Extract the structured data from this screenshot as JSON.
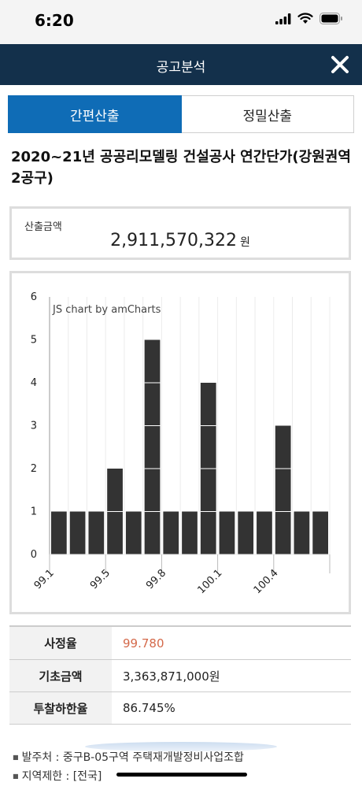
{
  "status_bar": {
    "time": "6:20"
  },
  "header": {
    "title": "공고분석"
  },
  "tabs": [
    {
      "label": "간편산출",
      "active": true
    },
    {
      "label": "정밀산출",
      "active": false
    }
  ],
  "heading": "2020~21년 공공리모델링 건설공사 연간단가(강원권역 2공구)",
  "calculated": {
    "label": "산출금액",
    "value": "2,911,570,322",
    "unit": "원"
  },
  "chart_data": {
    "type": "bar",
    "watermark": "JS chart by amCharts",
    "ylim": [
      0,
      6
    ],
    "y_ticks": [
      "0",
      "1",
      "2",
      "3",
      "4",
      "5",
      "6"
    ],
    "x_tick_labels": [
      "99.1",
      "99.5",
      "99.8",
      "100.1",
      "100.4"
    ],
    "values": [
      1,
      1,
      1,
      2,
      1,
      5,
      1,
      1,
      4,
      1,
      1,
      1,
      3,
      1,
      1
    ],
    "bar_color": "#333333"
  },
  "info": [
    {
      "label": "사정율",
      "value": "99.780",
      "accent": true
    },
    {
      "label": "기초금액",
      "value": "3,363,871,000원",
      "accent": false
    },
    {
      "label": "투찰하한율",
      "value": "86.745%",
      "accent": false
    }
  ],
  "notes": [
    "발주처 : 중구B-05구역 주택재개발정비사업조합",
    "지역제한 : [전국]"
  ],
  "colors": {
    "header_bg": "#13304b",
    "tab_active": "#0f6cb6",
    "accent": "#d4694a"
  }
}
